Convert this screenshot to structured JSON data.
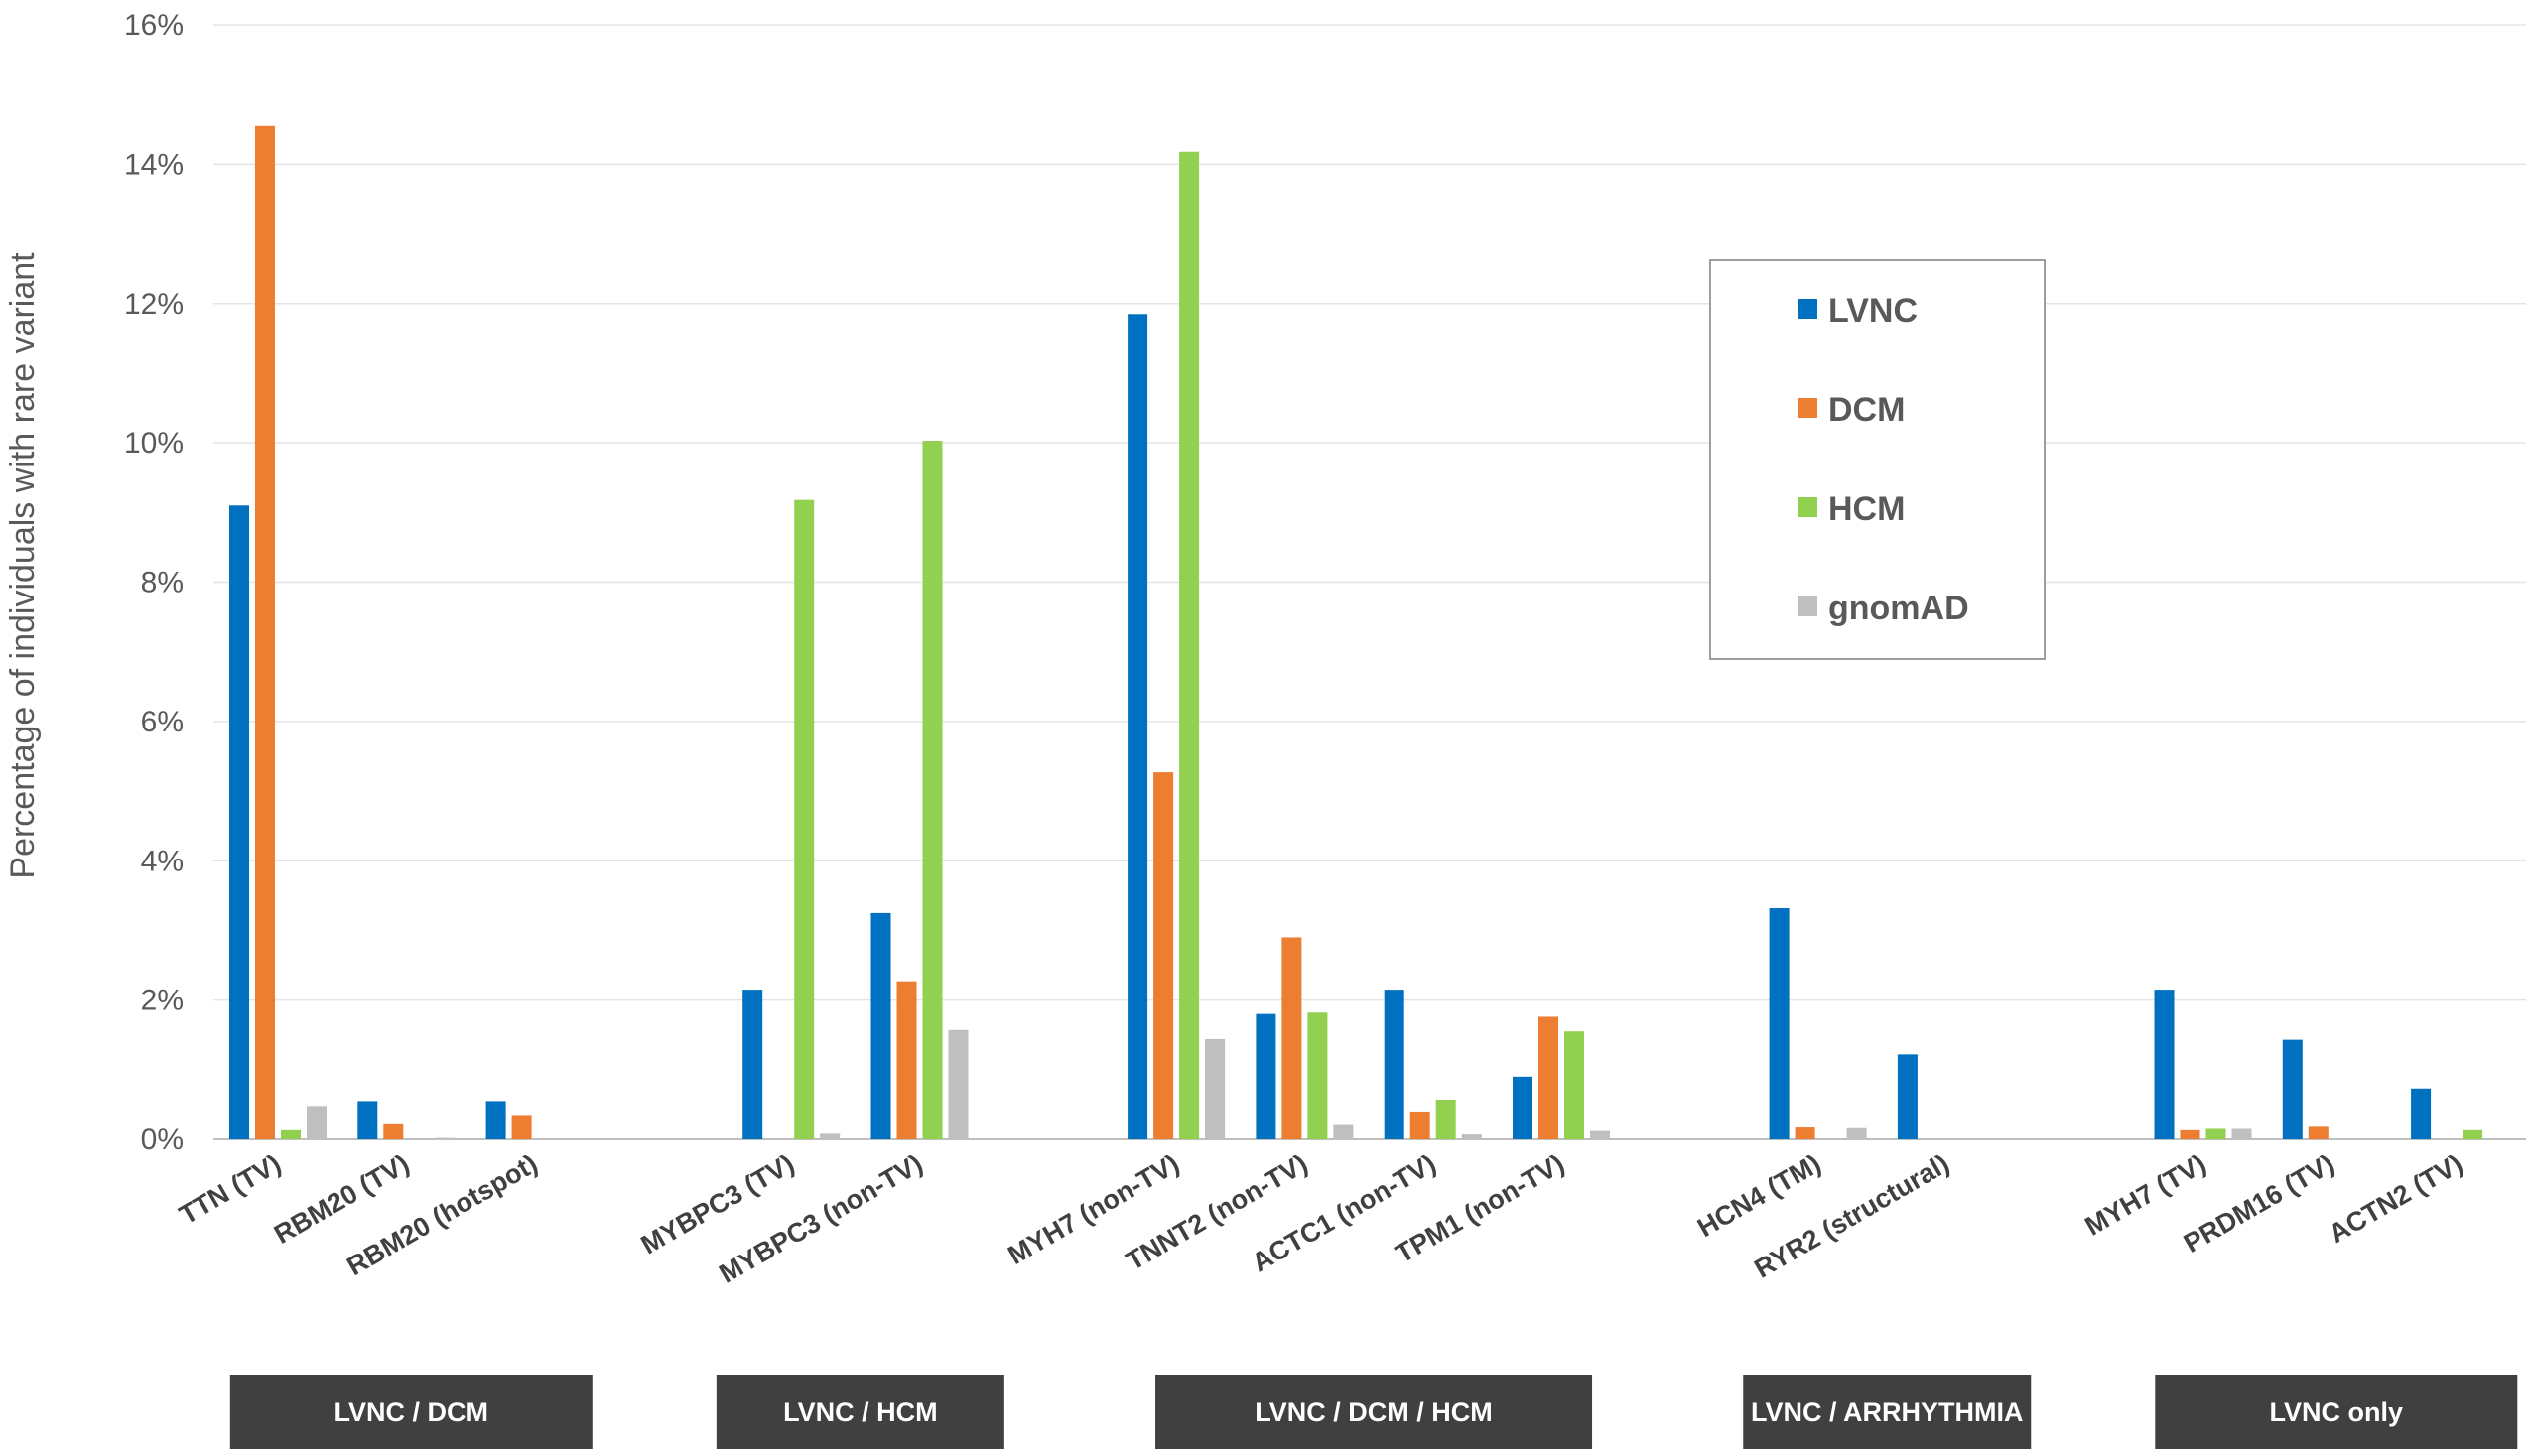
{
  "chart_data": {
    "type": "bar",
    "title": "",
    "xlabel": "",
    "ylabel": "Percentage of individuals with rare variant",
    "ylim": [
      0,
      16
    ],
    "y_ticks": [
      0,
      2,
      4,
      6,
      8,
      10,
      12,
      14,
      16
    ],
    "y_tick_labels": [
      "0%",
      "2%",
      "4%",
      "6%",
      "8%",
      "10%",
      "12%",
      "14%",
      "16%"
    ],
    "grid": true,
    "legend_position": "upper-right-inside",
    "categories": [
      "TTN (TV)",
      "RBM20 (TV)",
      "RBM20 (hotspot)",
      "MYBPC3 (TV)",
      "MYBPC3 (non-TV)",
      "MYH7 (non-TV)",
      "TNNT2 (non-TV)",
      "ACTC1 (non-TV)",
      "TPM1 (non-TV)",
      "HCN4 (TM)",
      "RYR2 (structural)",
      "MYH7 (TV)",
      "PRDM16 (TV)",
      "ACTN2 (TV)"
    ],
    "series": [
      {
        "name": "LVNC",
        "color": "#0070C0",
        "values": [
          9.1,
          0.55,
          0.55,
          2.15,
          3.25,
          11.85,
          1.8,
          2.15,
          0.9,
          3.32,
          1.22,
          2.15,
          1.43,
          0.73
        ]
      },
      {
        "name": "DCM",
        "color": "#ED7D31",
        "values": [
          14.55,
          0.23,
          0.35,
          0,
          2.27,
          5.27,
          2.9,
          0.4,
          1.76,
          0.17,
          0,
          0.13,
          0.18,
          0
        ]
      },
      {
        "name": "HCM",
        "color": "#92D050",
        "values": [
          0.13,
          0,
          0,
          9.18,
          10.03,
          14.18,
          1.82,
          0.57,
          1.55,
          0,
          0,
          0.15,
          0,
          0.13
        ]
      },
      {
        "name": "gnomAD",
        "color": "#BFBFBF",
        "values": [
          0.48,
          0.02,
          0,
          0.08,
          1.57,
          1.44,
          0.22,
          0.07,
          0.12,
          0.16,
          0,
          0.15,
          0,
          0
        ]
      }
    ],
    "groups": [
      {
        "label": "LVNC / DCM",
        "categories": [
          "TTN (TV)",
          "RBM20 (TV)",
          "RBM20 (hotspot)"
        ]
      },
      {
        "label": "LVNC / HCM",
        "categories": [
          "MYBPC3 (TV)",
          "MYBPC3 (non-TV)"
        ]
      },
      {
        "label": "LVNC / DCM / HCM",
        "categories": [
          "MYH7 (non-TV)",
          "TNNT2 (non-TV)",
          "ACTC1 (non-TV)",
          "TPM1 (non-TV)"
        ]
      },
      {
        "label": "LVNC / ARRHYTHMIA",
        "categories": [
          "HCN4 (TM)",
          "RYR2 (structural)"
        ]
      },
      {
        "label": "LVNC only",
        "categories": [
          "MYH7 (TV)",
          "PRDM16 (TV)",
          "ACTN2 (TV)"
        ]
      }
    ]
  }
}
